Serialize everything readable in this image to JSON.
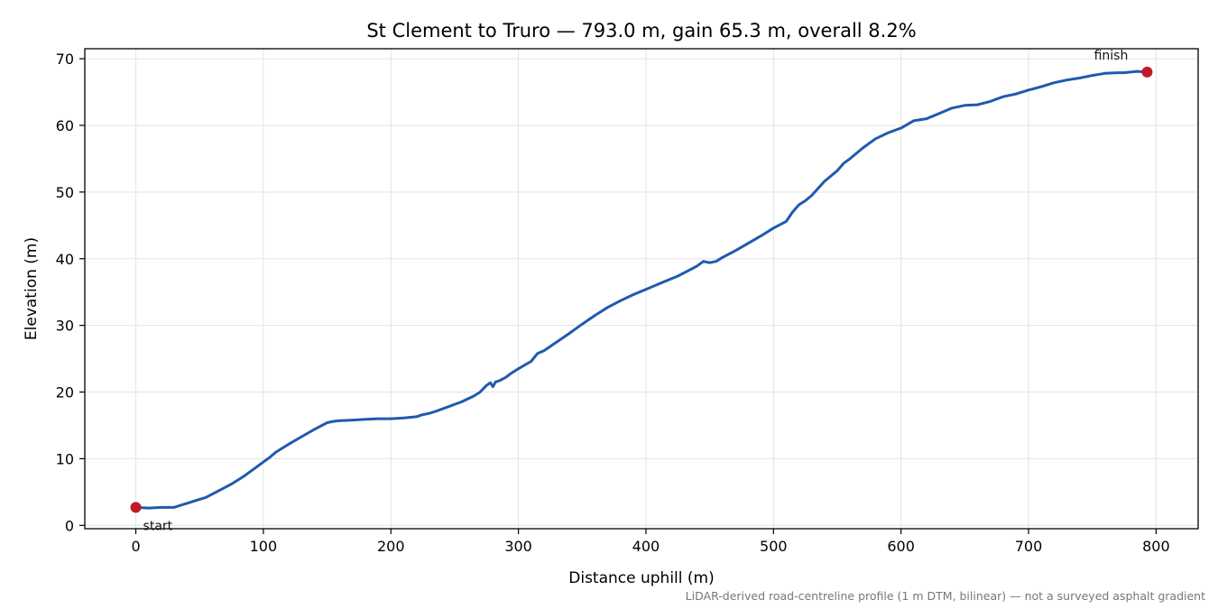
{
  "chart_data": {
    "type": "line",
    "title": "St Clement to Truro — 793.0 m, gain 65.3 m, overall 8.2%",
    "xlabel": "Distance uphill (m)",
    "ylabel": "Elevation (m)",
    "xlim": [
      -40,
      833
    ],
    "ylim": [
      -0.5,
      71.5
    ],
    "x_ticks": [
      0,
      100,
      200,
      300,
      400,
      500,
      600,
      700,
      800
    ],
    "y_ticks": [
      0,
      10,
      20,
      30,
      40,
      50,
      60,
      70
    ],
    "grid": true,
    "series": [
      {
        "color": "#1f5aad",
        "x": [
          0,
          10,
          20,
          30,
          35,
          40,
          45,
          55,
          65,
          75,
          85,
          95,
          100,
          105,
          110,
          115,
          120,
          130,
          140,
          150,
          155,
          160,
          170,
          180,
          190,
          200,
          210,
          220,
          225,
          230,
          235,
          245,
          255,
          265,
          270,
          275,
          278,
          280,
          282,
          285,
          290,
          295,
          300,
          310,
          315,
          320,
          330,
          340,
          350,
          360,
          370,
          380,
          390,
          400,
          410,
          420,
          425,
          430,
          440,
          445,
          450,
          455,
          460,
          470,
          480,
          490,
          500,
          510,
          515,
          520,
          525,
          530,
          540,
          550,
          555,
          560,
          570,
          580,
          590,
          600,
          610,
          620,
          630,
          640,
          650,
          660,
          670,
          680,
          690,
          700,
          710,
          720,
          730,
          740,
          750,
          760,
          770,
          775,
          780,
          785,
          793
        ],
        "y": [
          2.7,
          2.6,
          2.7,
          2.7,
          3.0,
          3.3,
          3.6,
          4.2,
          5.2,
          6.2,
          7.4,
          8.8,
          9.5,
          10.2,
          11.0,
          11.6,
          12.2,
          13.3,
          14.4,
          15.4,
          15.6,
          15.7,
          15.8,
          15.9,
          16.0,
          16.0,
          16.1,
          16.3,
          16.6,
          16.8,
          17.1,
          17.8,
          18.5,
          19.4,
          20.0,
          21.0,
          21.4,
          20.8,
          21.5,
          21.7,
          22.2,
          22.9,
          23.5,
          24.6,
          25.8,
          26.2,
          27.5,
          28.8,
          30.2,
          31.5,
          32.7,
          33.7,
          34.6,
          35.4,
          36.2,
          37.0,
          37.4,
          37.9,
          38.9,
          39.6,
          39.4,
          39.6,
          40.2,
          41.2,
          42.3,
          43.4,
          44.6,
          45.6,
          47.0,
          48.1,
          48.7,
          49.5,
          51.6,
          53.2,
          54.3,
          55.0,
          56.6,
          58.0,
          58.9,
          59.6,
          60.7,
          61.0,
          61.8,
          62.6,
          63.0,
          63.1,
          63.6,
          64.3,
          64.7,
          65.3,
          65.8,
          66.4,
          66.8,
          67.1,
          67.5,
          67.8,
          67.9,
          67.9,
          68.0,
          68.1,
          68.0
        ]
      }
    ],
    "markers": [
      {
        "label": "start",
        "x": 0,
        "y": 2.7,
        "color": "#c01a2a"
      },
      {
        "label": "finish",
        "x": 793,
        "y": 68.0,
        "color": "#c01a2a"
      }
    ],
    "footnote": "LiDAR-derived road-centreline profile (1 m DTM, bilinear) — not a surveyed asphalt gradient"
  }
}
